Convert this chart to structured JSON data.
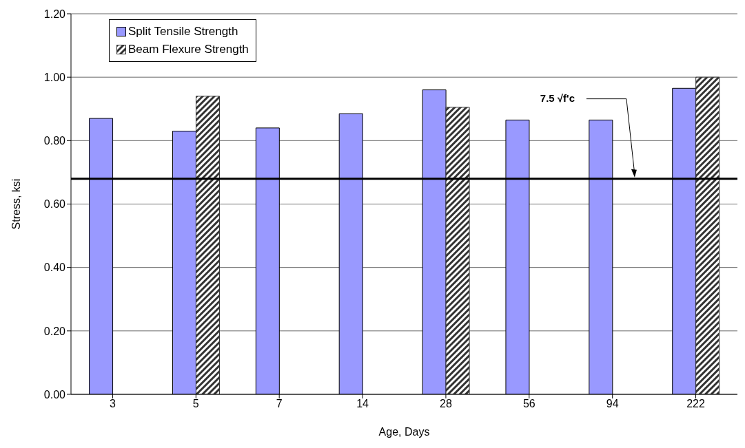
{
  "chart_data": {
    "type": "bar",
    "xlabel": "Age, Days",
    "ylabel": "Stress, ksi",
    "categories": [
      "3",
      "5",
      "7",
      "14",
      "28",
      "56",
      "94",
      "222"
    ],
    "series": [
      {
        "name": "Split Tensile Strength",
        "color": "#9999ff",
        "values": [
          0.87,
          0.83,
          0.84,
          0.885,
          0.96,
          0.865,
          0.865,
          0.965
        ]
      },
      {
        "name": "Beam Flexure Strength",
        "color": "#333333",
        "values": [
          null,
          0.94,
          null,
          null,
          0.905,
          null,
          null,
          1.0
        ]
      }
    ],
    "ylim": [
      0,
      1.2
    ],
    "yticks": [
      {
        "value": 0,
        "label": "0.00"
      },
      {
        "value": 0.2,
        "label": "0.20"
      },
      {
        "value": 0.4,
        "label": "0.40"
      },
      {
        "value": 0.6,
        "label": "0.60"
      },
      {
        "value": 0.8,
        "label": "0.80"
      },
      {
        "value": 1.0,
        "label": "1.00"
      },
      {
        "value": 1.2,
        "label": "1.20"
      }
    ],
    "grid": "y",
    "legend": "top left",
    "ref_lines": [
      {
        "axis": "y",
        "value": 0.68,
        "label": "7.5 √f'c",
        "color": "#000000"
      }
    ]
  }
}
